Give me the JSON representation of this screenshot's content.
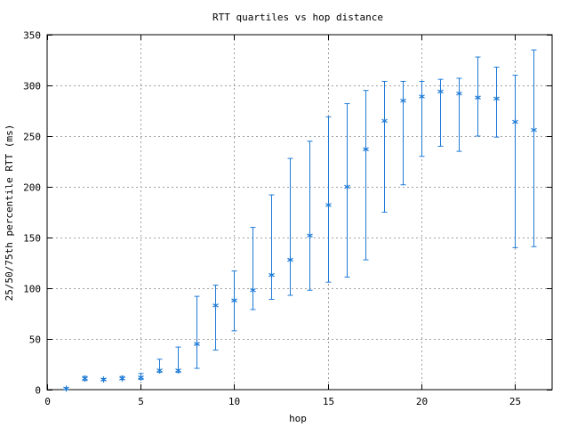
{
  "chart_data": {
    "type": "scatter",
    "title": "RTT quartiles vs hop distance",
    "xlabel": "hop",
    "ylabel": "25/50/75th percentile RTT (ms)",
    "xlim": [
      0,
      27
    ],
    "ylim": [
      0,
      350
    ],
    "xticks": [
      0,
      5,
      10,
      15,
      20,
      25
    ],
    "yticks": [
      0,
      50,
      100,
      150,
      200,
      250,
      300,
      350
    ],
    "grid": true,
    "legend": "none",
    "series": [
      {
        "color": "#1f7bd6",
        "marker": "asterisk",
        "error_bars": true,
        "points": [
          {
            "x": 1,
            "median": 1,
            "low": 0,
            "high": 2
          },
          {
            "x": 2,
            "median": 11,
            "low": 9,
            "high": 13
          },
          {
            "x": 3,
            "median": 10,
            "low": 9,
            "high": 11
          },
          {
            "x": 4,
            "median": 11,
            "low": 10,
            "high": 13
          },
          {
            "x": 5,
            "median": 12,
            "low": 10,
            "high": 16
          },
          {
            "x": 6,
            "median": 19,
            "low": 17,
            "high": 30
          },
          {
            "x": 7,
            "median": 19,
            "low": 17,
            "high": 42
          },
          {
            "x": 8,
            "median": 45,
            "low": 21,
            "high": 92
          },
          {
            "x": 9,
            "median": 83,
            "low": 39,
            "high": 103
          },
          {
            "x": 10,
            "median": 88,
            "low": 58,
            "high": 117
          },
          {
            "x": 11,
            "median": 98,
            "low": 79,
            "high": 160
          },
          {
            "x": 12,
            "median": 113,
            "low": 89,
            "high": 192
          },
          {
            "x": 13,
            "median": 128,
            "low": 93,
            "high": 228
          },
          {
            "x": 14,
            "median": 152,
            "low": 98,
            "high": 245
          },
          {
            "x": 15,
            "median": 182,
            "low": 106,
            "high": 269
          },
          {
            "x": 16,
            "median": 200,
            "low": 111,
            "high": 282
          },
          {
            "x": 17,
            "median": 237,
            "low": 128,
            "high": 295
          },
          {
            "x": 18,
            "median": 265,
            "low": 175,
            "high": 304
          },
          {
            "x": 19,
            "median": 285,
            "low": 202,
            "high": 304
          },
          {
            "x": 20,
            "median": 289,
            "low": 230,
            "high": 304
          },
          {
            "x": 21,
            "median": 294,
            "low": 240,
            "high": 306
          },
          {
            "x": 22,
            "median": 292,
            "low": 235,
            "high": 307
          },
          {
            "x": 23,
            "median": 288,
            "low": 250,
            "high": 328
          },
          {
            "x": 24,
            "median": 287,
            "low": 249,
            "high": 318
          },
          {
            "x": 25,
            "median": 264,
            "low": 140,
            "high": 310
          },
          {
            "x": 26,
            "median": 256,
            "low": 141,
            "high": 335
          }
        ]
      }
    ]
  }
}
